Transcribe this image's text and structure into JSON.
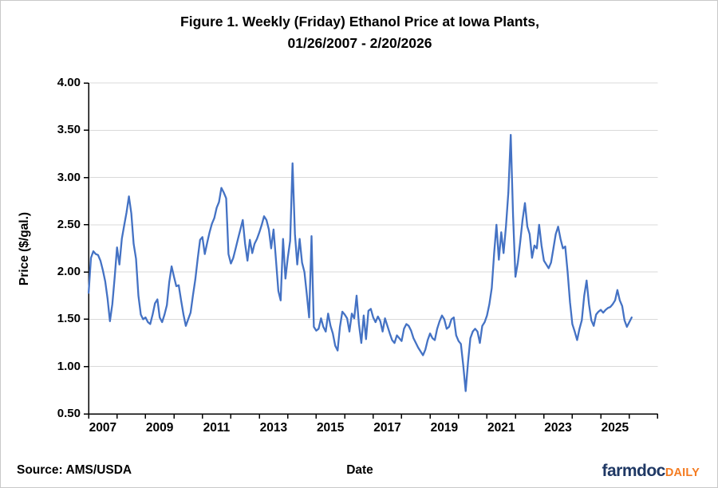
{
  "title": {
    "line1": "Figure 1. Weekly (Friday) Ethanol Price at Iowa Plants,",
    "line2": "01/26/2007 - 2/20/2026"
  },
  "footer": {
    "source": "Source: AMS/USDA",
    "x_axis_title": "Date",
    "logo_farmdoc": "farmdoc",
    "logo_daily": "DAILY"
  },
  "colors": {
    "line": "#4472C4",
    "grid": "#D9D9D9",
    "axis": "#000000",
    "text": "#000000",
    "logo_navy": "#1F3864",
    "logo_orange": "#F47B20"
  },
  "chart_data": {
    "type": "line",
    "title": "Figure 1. Weekly (Friday) Ethanol Price at Iowa Plants, 01/26/2007 - 2/20/2026",
    "xlabel": "Date",
    "ylabel": "Price ($/gal.)",
    "ylim": [
      0.5,
      4.0
    ],
    "ytick_step": 0.5,
    "ytick_labels": [
      "0.50",
      "1.00",
      "1.50",
      "2.00",
      "2.50",
      "3.00",
      "3.50",
      "4.00"
    ],
    "grid": "horizontal",
    "legend": "none",
    "x_axis": {
      "start_year_decimal": 2007.04,
      "span_years": 20,
      "year_tick_interval": 1,
      "xtick_labels": [
        "2007",
        "2009",
        "2011",
        "2013",
        "2015",
        "2017",
        "2019",
        "2021",
        "2023",
        "2025"
      ],
      "label_year_offsets": [
        0,
        2,
        4,
        6,
        8,
        10,
        12,
        14,
        16,
        18
      ]
    },
    "series": [
      {
        "name": "Weekly (Friday) ethanol price at Iowa plants",
        "units": "$/gal.",
        "sampling": "monthly estimates read from chart, Jan 2007 - Feb 2026",
        "start_year": 2007,
        "values": [
          1.78,
          2.15,
          2.22,
          2.19,
          2.18,
          2.12,
          2.02,
          1.9,
          1.72,
          1.48,
          1.66,
          1.95,
          2.26,
          2.08,
          2.35,
          2.49,
          2.63,
          2.8,
          2.62,
          2.3,
          2.14,
          1.75,
          1.55,
          1.5,
          1.52,
          1.47,
          1.45,
          1.55,
          1.67,
          1.71,
          1.52,
          1.47,
          1.55,
          1.65,
          1.89,
          2.06,
          1.95,
          1.85,
          1.86,
          1.7,
          1.55,
          1.43,
          1.5,
          1.57,
          1.75,
          1.92,
          2.14,
          2.34,
          2.37,
          2.19,
          2.31,
          2.42,
          2.51,
          2.57,
          2.68,
          2.74,
          2.89,
          2.84,
          2.78,
          2.19,
          2.09,
          2.15,
          2.25,
          2.35,
          2.45,
          2.55,
          2.3,
          2.12,
          2.34,
          2.2,
          2.3,
          2.35,
          2.42,
          2.5,
          2.59,
          2.55,
          2.45,
          2.25,
          2.45,
          2.13,
          1.8,
          1.7,
          2.35,
          1.93,
          2.15,
          2.33,
          3.15,
          2.4,
          2.08,
          2.35,
          2.1,
          2.0,
          1.77,
          1.52,
          2.38,
          1.42,
          1.38,
          1.4,
          1.51,
          1.42,
          1.37,
          1.56,
          1.43,
          1.35,
          1.22,
          1.17,
          1.42,
          1.58,
          1.55,
          1.51,
          1.37,
          1.56,
          1.51,
          1.75,
          1.45,
          1.25,
          1.54,
          1.29,
          1.59,
          1.61,
          1.52,
          1.47,
          1.53,
          1.48,
          1.37,
          1.51,
          1.43,
          1.35,
          1.28,
          1.25,
          1.33,
          1.3,
          1.27,
          1.4,
          1.45,
          1.43,
          1.38,
          1.3,
          1.25,
          1.2,
          1.16,
          1.12,
          1.18,
          1.28,
          1.35,
          1.3,
          1.28,
          1.4,
          1.48,
          1.54,
          1.5,
          1.4,
          1.42,
          1.5,
          1.52,
          1.33,
          1.27,
          1.24,
          1.01,
          0.74,
          1.05,
          1.3,
          1.37,
          1.4,
          1.37,
          1.25,
          1.43,
          1.47,
          1.54,
          1.66,
          1.83,
          2.2,
          2.5,
          2.13,
          2.42,
          2.2,
          2.48,
          2.84,
          3.45,
          2.6,
          1.95,
          2.1,
          2.32,
          2.55,
          2.73,
          2.48,
          2.4,
          2.15,
          2.28,
          2.25,
          2.5,
          2.28,
          2.12,
          2.08,
          2.04,
          2.1,
          2.25,
          2.4,
          2.48,
          2.35,
          2.25,
          2.27,
          2.0,
          1.68,
          1.45,
          1.37,
          1.28,
          1.4,
          1.49,
          1.75,
          1.91,
          1.66,
          1.49,
          1.43,
          1.55,
          1.58,
          1.6,
          1.57,
          1.6,
          1.62,
          1.63,
          1.66,
          1.7,
          1.81,
          1.7,
          1.64,
          1.49,
          1.42,
          1.47,
          1.52
        ]
      }
    ]
  }
}
